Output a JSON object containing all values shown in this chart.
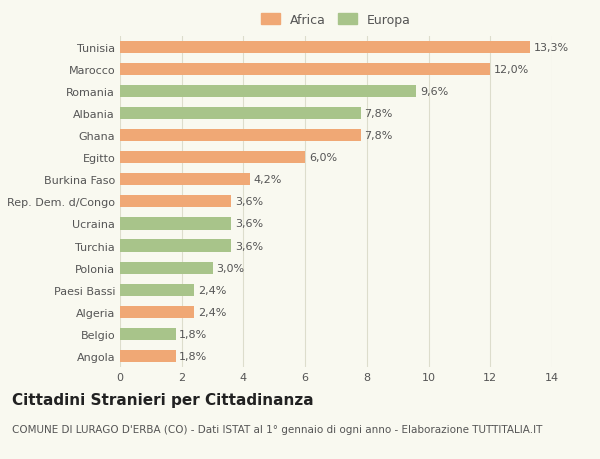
{
  "categories": [
    "Angola",
    "Belgio",
    "Algeria",
    "Paesi Bassi",
    "Polonia",
    "Turchia",
    "Ucraina",
    "Rep. Dem. d/Congo",
    "Burkina Faso",
    "Egitto",
    "Ghana",
    "Albania",
    "Romania",
    "Marocco",
    "Tunisia"
  ],
  "values": [
    1.8,
    1.8,
    2.4,
    2.4,
    3.0,
    3.6,
    3.6,
    3.6,
    4.2,
    6.0,
    7.8,
    7.8,
    9.6,
    12.0,
    13.3
  ],
  "labels": [
    "1,8%",
    "1,8%",
    "2,4%",
    "2,4%",
    "3,0%",
    "3,6%",
    "3,6%",
    "3,6%",
    "4,2%",
    "6,0%",
    "7,8%",
    "7,8%",
    "9,6%",
    "12,0%",
    "13,3%"
  ],
  "colors": [
    "#f0a875",
    "#a8c48a",
    "#f0a875",
    "#a8c48a",
    "#a8c48a",
    "#a8c48a",
    "#a8c48a",
    "#f0a875",
    "#f0a875",
    "#f0a875",
    "#f0a875",
    "#a8c48a",
    "#a8c48a",
    "#f0a875",
    "#f0a875"
  ],
  "africa_color": "#f0a875",
  "europa_color": "#a8c48a",
  "background_color": "#f9f9f0",
  "grid_color": "#ddddcc",
  "title": "Cittadini Stranieri per Cittadinanza",
  "subtitle": "COMUNE DI LURAGO D'ERBA (CO) - Dati ISTAT al 1° gennaio di ogni anno - Elaborazione TUTTITALIA.IT",
  "xlim": [
    0,
    14
  ],
  "xticks": [
    0,
    2,
    4,
    6,
    8,
    10,
    12,
    14
  ],
  "bar_height": 0.55,
  "text_color": "#555555",
  "label_fontsize": 8,
  "tick_fontsize": 8,
  "title_fontsize": 11,
  "subtitle_fontsize": 7.5
}
